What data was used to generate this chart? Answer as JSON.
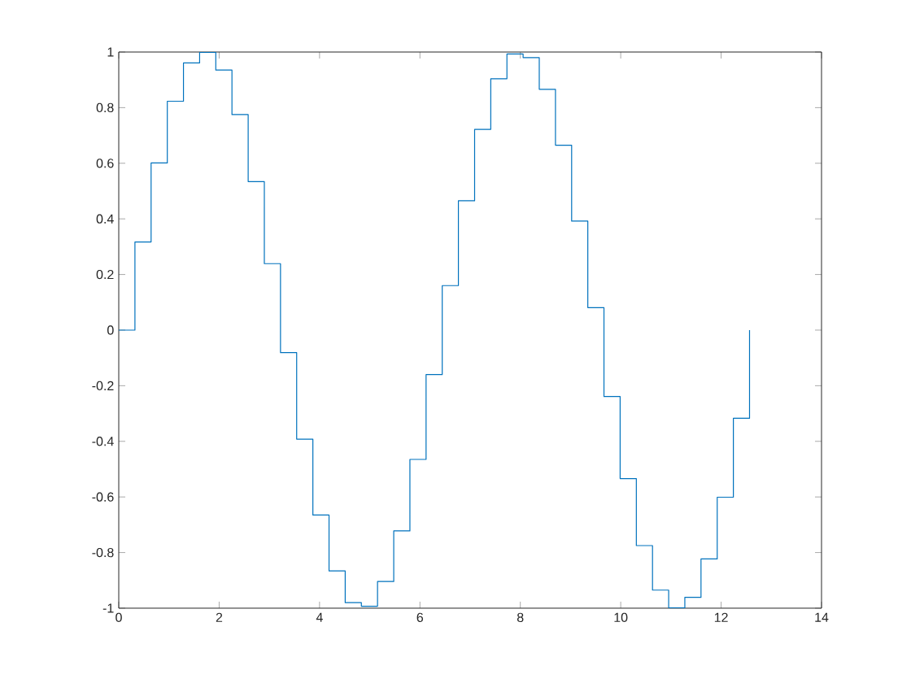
{
  "chart_data": {
    "type": "step",
    "x": [
      0,
      0.322,
      0.644,
      0.967,
      1.289,
      1.611,
      1.933,
      2.255,
      2.578,
      2.9,
      3.222,
      3.544,
      3.867,
      4.189,
      4.511,
      4.833,
      5.155,
      5.478,
      5.8,
      6.122,
      6.444,
      6.766,
      7.089,
      7.411,
      7.733,
      8.055,
      8.377,
      8.7,
      9.022,
      9.344,
      9.666,
      9.988,
      10.311,
      10.633,
      10.955,
      11.277,
      11.599,
      11.922,
      12.244,
      12.566
    ],
    "series": [
      {
        "color": "#0072bd",
        "values": [
          0,
          0.317,
          0.601,
          0.823,
          0.961,
          0.999,
          0.935,
          0.775,
          0.534,
          0.239,
          -0.081,
          -0.392,
          -0.665,
          -0.866,
          -0.98,
          -0.993,
          -0.904,
          -0.722,
          -0.465,
          -0.16,
          0.16,
          0.465,
          0.722,
          0.904,
          0.993,
          0.98,
          0.866,
          0.665,
          0.392,
          0.081,
          -0.239,
          -0.534,
          -0.775,
          -0.935,
          -0.999,
          -0.961,
          -0.823,
          -0.601,
          -0.317,
          0
        ]
      }
    ],
    "xlim": [
      0,
      14
    ],
    "ylim": [
      -1,
      1
    ],
    "xticks": [
      0,
      2,
      4,
      6,
      8,
      10,
      12,
      14
    ],
    "yticks": [
      -1,
      -0.8,
      -0.6,
      -0.4,
      -0.2,
      0,
      0.2,
      0.4,
      0.6,
      0.8,
      1
    ]
  }
}
